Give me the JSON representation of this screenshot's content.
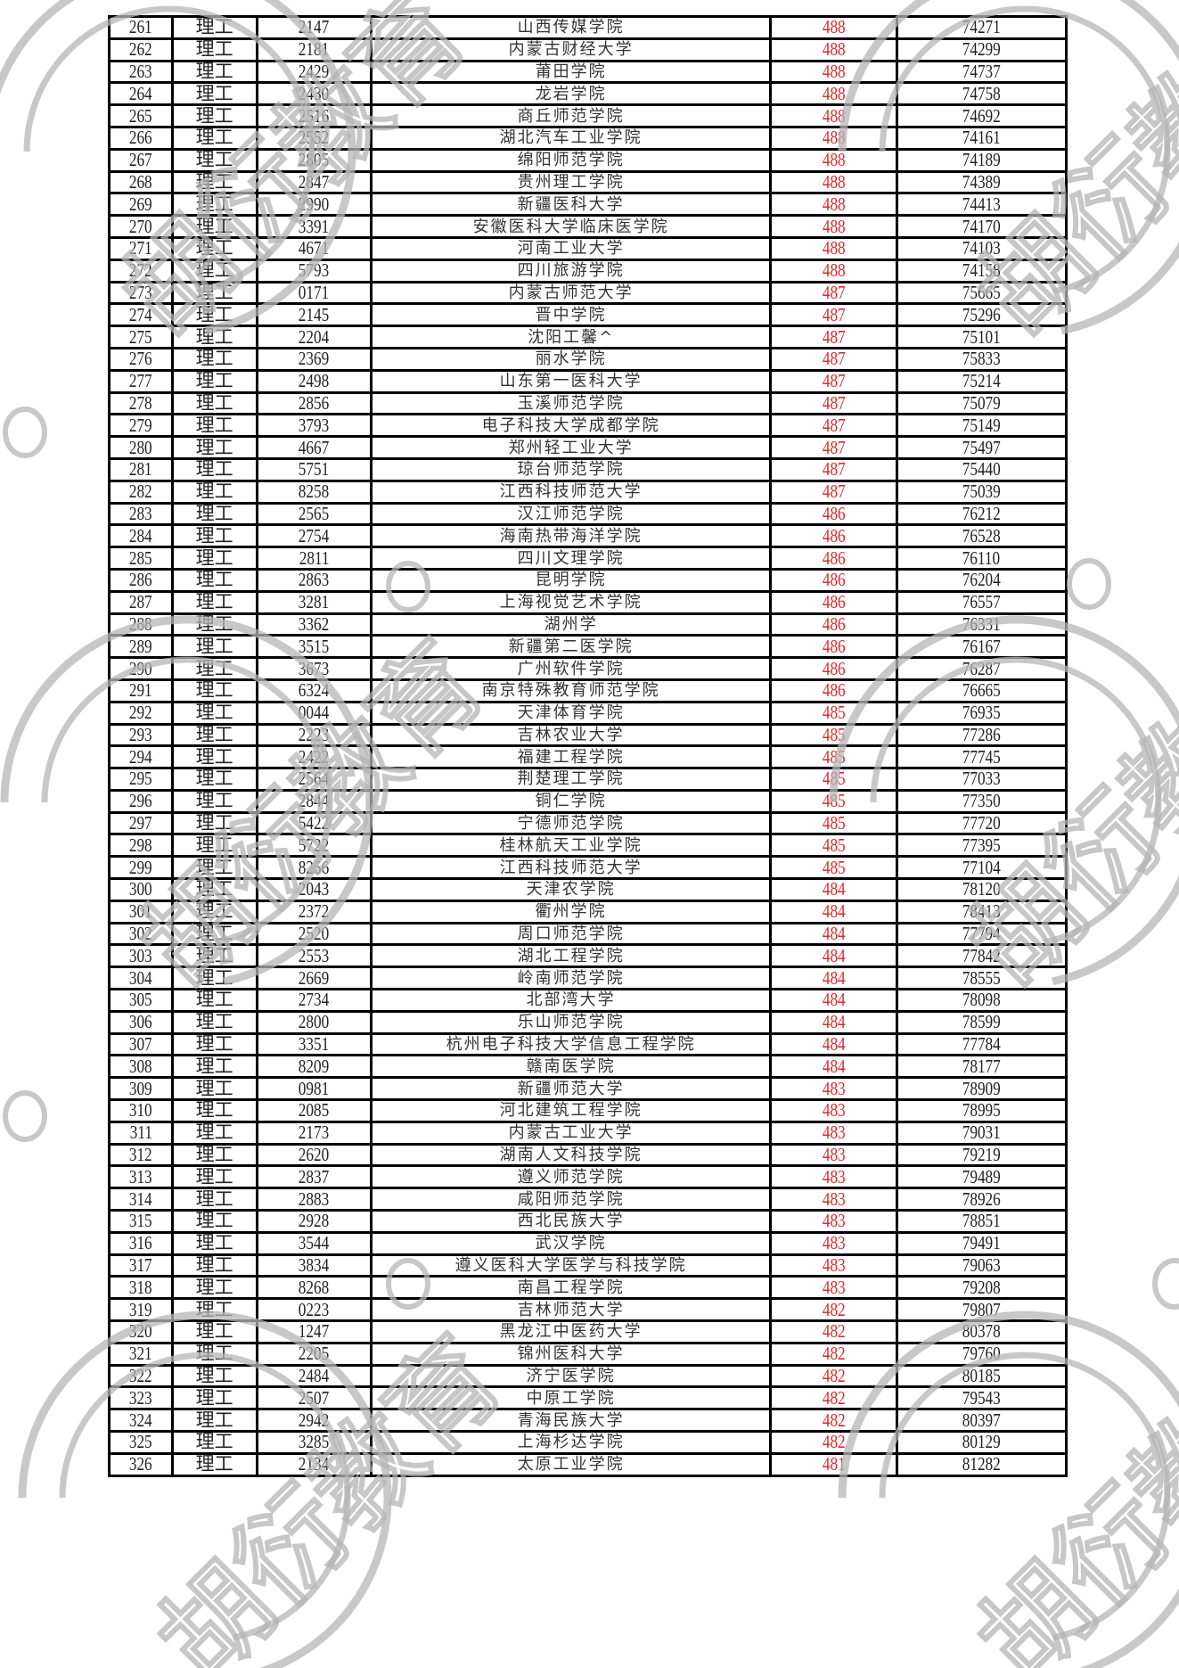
{
  "watermark": {
    "text": "胡衍教育",
    "color": "#b5b5b5"
  },
  "score_color": "#e0262b",
  "rows": [
    [
      "261",
      "理工",
      "2147",
      "山西传媒学院",
      "488",
      "74271"
    ],
    [
      "262",
      "理工",
      "2181",
      "内蒙古财经大学",
      "488",
      "74299"
    ],
    [
      "263",
      "理工",
      "2429",
      "莆田学院",
      "488",
      "74737"
    ],
    [
      "264",
      "理工",
      "2430",
      "龙岩学院",
      "488",
      "74758"
    ],
    [
      "265",
      "理工",
      "2516",
      "商丘师范学院",
      "488",
      "74692"
    ],
    [
      "266",
      "理工",
      "2552",
      "湖北汽车工业学院",
      "488",
      "74161"
    ],
    [
      "267",
      "理工",
      "2805",
      "绵阳师范学院",
      "488",
      "74189"
    ],
    [
      "268",
      "理工",
      "2847",
      "贵州理工学院",
      "488",
      "74389"
    ],
    [
      "269",
      "理工",
      "2990",
      "新疆医科大学",
      "488",
      "74413"
    ],
    [
      "270",
      "理工",
      "3391",
      "安徽医科大学临床医学院",
      "488",
      "74170"
    ],
    [
      "271",
      "理工",
      "4671",
      "河南工业大学",
      "488",
      "74103"
    ],
    [
      "272",
      "理工",
      "5793",
      "四川旅游学院",
      "488",
      "74158"
    ],
    [
      "273",
      "理工",
      "0171",
      "内蒙古师范大学",
      "487",
      "75665"
    ],
    [
      "274",
      "理工",
      "2145",
      "晋中学院",
      "487",
      "75296"
    ],
    [
      "275",
      "理工",
      "2204",
      "沈阳工馨^",
      "487",
      "75101"
    ],
    [
      "276",
      "理工",
      "2369",
      "丽水学院",
      "487",
      "75833"
    ],
    [
      "277",
      "理工",
      "2498",
      "山东第一医科大学",
      "487",
      "75214"
    ],
    [
      "278",
      "理工",
      "2856",
      "玉溪师范学院",
      "487",
      "75079"
    ],
    [
      "279",
      "理工",
      "3793",
      "电子科技大学成都学院",
      "487",
      "75149"
    ],
    [
      "280",
      "理工",
      "4667",
      "郑州轻工业大学",
      "487",
      "75497"
    ],
    [
      "281",
      "理工",
      "5751",
      "琼台师范学院",
      "487",
      "75440"
    ],
    [
      "282",
      "理工",
      "8258",
      "江西科技师范大学",
      "487",
      "75039"
    ],
    [
      "283",
      "理工",
      "2565",
      "汉江师范学院",
      "486",
      "76212"
    ],
    [
      "284",
      "理工",
      "2754",
      "海南热带海洋学院",
      "486",
      "76528"
    ],
    [
      "285",
      "理工",
      "2811",
      "四川文理学院",
      "486",
      "76110"
    ],
    [
      "286",
      "理工",
      "2863",
      "昆明学院",
      "486",
      "76204"
    ],
    [
      "287",
      "理工",
      "3281",
      "上海视觉艺术学院",
      "486",
      "76557"
    ],
    [
      "288",
      "理工",
      "3362",
      "湖州学",
      "486",
      "76331"
    ],
    [
      "289",
      "理工",
      "3515",
      "新疆第二医学院",
      "486",
      "76167"
    ],
    [
      "290",
      "理工",
      "3673",
      "广州软件学院",
      "486",
      "76287"
    ],
    [
      "291",
      "理工",
      "6324",
      "南京特殊教育师范学院",
      "486",
      "76665"
    ],
    [
      "292",
      "理工",
      "0044",
      "天津体育学院",
      "485",
      "76935"
    ],
    [
      "293",
      "理工",
      "2223",
      "吉林农业大学",
      "485",
      "77286"
    ],
    [
      "294",
      "理工",
      "2422",
      "福建工程学院",
      "485",
      "77745"
    ],
    [
      "295",
      "理工",
      "2564",
      "荆楚理工学院",
      "485",
      "77033"
    ],
    [
      "296",
      "理工",
      "2844",
      "铜仁学院",
      "485",
      "77350"
    ],
    [
      "297",
      "理工",
      "5422",
      "宁德师范学院",
      "485",
      "77720"
    ],
    [
      "298",
      "理工",
      "5722",
      "桂林航天工业学院",
      "485",
      "77395"
    ],
    [
      "299",
      "理工",
      "8256",
      "江西科技师范大学",
      "485",
      "77104"
    ],
    [
      "300",
      "理工",
      "2043",
      "天津农学院",
      "484",
      "78120"
    ],
    [
      "301",
      "理工",
      "2372",
      "衢州学院",
      "484",
      "78413"
    ],
    [
      "302",
      "理工",
      "2520",
      "周口师范学院",
      "484",
      "77794"
    ],
    [
      "303",
      "理工",
      "2553",
      "湖北工程学院",
      "484",
      "77842"
    ],
    [
      "304",
      "理工",
      "2669",
      "岭南师范学院",
      "484",
      "78555"
    ],
    [
      "305",
      "理工",
      "2734",
      "北部湾大学",
      "484",
      "78098"
    ],
    [
      "306",
      "理工",
      "2800",
      "乐山师范学院",
      "484",
      "78599"
    ],
    [
      "307",
      "理工",
      "3351",
      "杭州电子科技大学信息工程学院",
      "484",
      "77784"
    ],
    [
      "308",
      "理工",
      "8209",
      "赣南医学院",
      "484",
      "78177"
    ],
    [
      "309",
      "理工",
      "0981",
      "新疆师范大学",
      "483",
      "78909"
    ],
    [
      "310",
      "理工",
      "2085",
      "河北建筑工程学院",
      "483",
      "78995"
    ],
    [
      "311",
      "理工",
      "2173",
      "内蒙古工业大学",
      "483",
      "79031"
    ],
    [
      "312",
      "理工",
      "2620",
      "湖南人文科技学院",
      "483",
      "79219"
    ],
    [
      "313",
      "理工",
      "2837",
      "遵义师范学院",
      "483",
      "79489"
    ],
    [
      "314",
      "理工",
      "2883",
      "咸阳师范学院",
      "483",
      "78926"
    ],
    [
      "315",
      "理工",
      "2928",
      "西北民族大学",
      "483",
      "78851"
    ],
    [
      "316",
      "理工",
      "3544",
      "武汉学院",
      "483",
      "79491"
    ],
    [
      "317",
      "理工",
      "3834",
      "遵义医科大学医学与科技学院",
      "483",
      "79063"
    ],
    [
      "318",
      "理工",
      "8268",
      "南昌工程学院",
      "483",
      "79208"
    ],
    [
      "319",
      "理工",
      "0223",
      "吉林师范大学",
      "482",
      "79807"
    ],
    [
      "320",
      "理工",
      "1247",
      "黑龙江中医药大学",
      "482",
      "80378"
    ],
    [
      "321",
      "理工",
      "2205",
      "锦州医科大学",
      "482",
      "79760"
    ],
    [
      "322",
      "理工",
      "2484",
      "济宁医学院",
      "482",
      "80185"
    ],
    [
      "323",
      "理工",
      "2507",
      "中原工学院",
      "482",
      "79543"
    ],
    [
      "324",
      "理工",
      "2942",
      "青海民族大学",
      "482",
      "80397"
    ],
    [
      "325",
      "理工",
      "3285",
      "上海杉达学院",
      "482",
      "80129"
    ],
    [
      "326",
      "理工",
      "2134",
      "太原工业学院",
      "481",
      "81282"
    ]
  ]
}
